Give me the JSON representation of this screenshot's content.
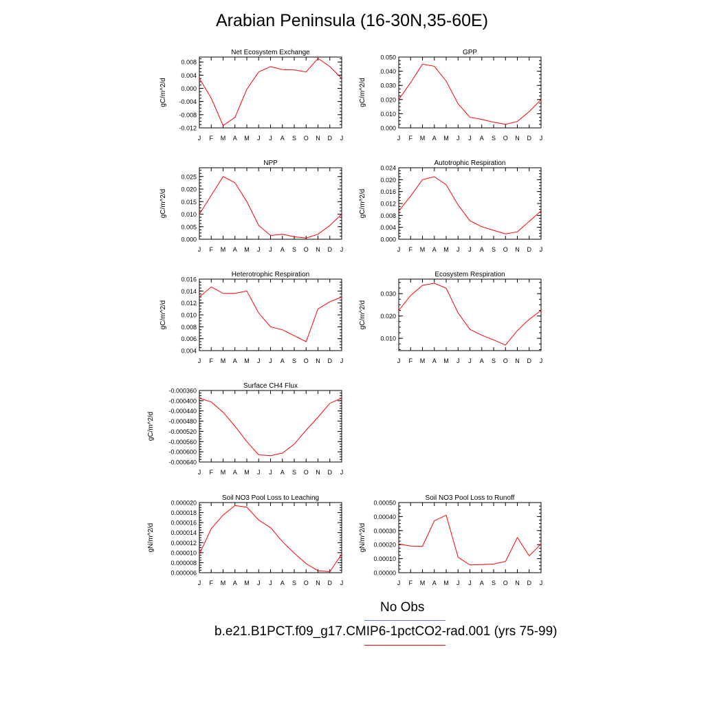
{
  "page_title": "Arabian Peninsula (16-30N,35-60E)",
  "colors": {
    "series": "#ff0000",
    "obs": "#6b6bff",
    "axis": "#000000"
  },
  "legend": [
    {
      "label": "No Obs",
      "color": "#6b6bff"
    },
    {
      "label": "b.e21.B1PCT.f09_g17.CMIP6-1pctCO2-rad.001 (yrs 75-99)",
      "color": "#ff0000"
    }
  ],
  "chart_data": [
    {
      "type": "line",
      "title": "Net Ecosystem Exchange",
      "ylabel": "gC/m^2/d",
      "categories": [
        "J",
        "F",
        "M",
        "A",
        "M",
        "J",
        "J",
        "A",
        "S",
        "O",
        "N",
        "D",
        "J"
      ],
      "ylim": [
        -0.012,
        0.0095
      ],
      "yticks": [
        -0.012,
        -0.008,
        -0.004,
        0.0,
        0.004,
        0.008
      ],
      "yticklabels": [
        "-0.012",
        "-0.008",
        "-0.004",
        "0.000",
        "0.004",
        "0.008"
      ],
      "values": [
        0.003,
        -0.003,
        -0.0113,
        -0.0088,
        -0.0003,
        0.005,
        0.0066,
        0.0057,
        0.0056,
        0.005,
        0.0091,
        0.0066,
        0.003
      ]
    },
    {
      "type": "line",
      "title": "GPP",
      "ylabel": "gC/m^2/d",
      "categories": [
        "J",
        "F",
        "M",
        "A",
        "M",
        "J",
        "J",
        "A",
        "S",
        "O",
        "N",
        "D",
        "J"
      ],
      "ylim": [
        0.0,
        0.05
      ],
      "yticks": [
        0.0,
        0.01,
        0.02,
        0.03,
        0.04,
        0.05
      ],
      "yticklabels": [
        "0.000",
        "0.010",
        "0.020",
        "0.030",
        "0.040",
        "0.050"
      ],
      "values": [
        0.02,
        0.032,
        0.045,
        0.0435,
        0.033,
        0.017,
        0.0075,
        0.006,
        0.004,
        0.0025,
        0.0045,
        0.0115,
        0.02
      ]
    },
    {
      "type": "line",
      "title": "NPP",
      "ylabel": "gC/m^2/d",
      "categories": [
        "J",
        "F",
        "M",
        "A",
        "M",
        "J",
        "J",
        "A",
        "S",
        "O",
        "N",
        "D",
        "J"
      ],
      "ylim": [
        0.0,
        0.0285
      ],
      "yticks": [
        0.0,
        0.005,
        0.01,
        0.015,
        0.02,
        0.025
      ],
      "yticklabels": [
        "0.000",
        "0.005",
        "0.010",
        "0.015",
        "0.020",
        "0.025"
      ],
      "values": [
        0.01,
        0.0175,
        0.025,
        0.0225,
        0.015,
        0.0055,
        0.0015,
        0.002,
        0.001,
        0.0005,
        0.002,
        0.0055,
        0.01
      ]
    },
    {
      "type": "line",
      "title": "Autotrophic Respiration",
      "ylabel": "gC/m^2/d",
      "categories": [
        "J",
        "F",
        "M",
        "A",
        "M",
        "J",
        "J",
        "A",
        "S",
        "O",
        "N",
        "D",
        "J"
      ],
      "ylim": [
        0.0,
        0.024
      ],
      "yticks": [
        0.0,
        0.004,
        0.008,
        0.012,
        0.016,
        0.02,
        0.024
      ],
      "yticklabels": [
        "0.000",
        "0.004",
        "0.008",
        "0.012",
        "0.016",
        "0.020",
        "0.024"
      ],
      "values": [
        0.0095,
        0.0145,
        0.02,
        0.021,
        0.0183,
        0.0115,
        0.0062,
        0.0042,
        0.003,
        0.0018,
        0.0025,
        0.006,
        0.0095
      ]
    },
    {
      "type": "line",
      "title": "Heterotrophic Respiration",
      "ylabel": "gC/m^2/d",
      "categories": [
        "J",
        "F",
        "M",
        "A",
        "M",
        "J",
        "J",
        "A",
        "S",
        "O",
        "N",
        "D",
        "J"
      ],
      "ylim": [
        0.004,
        0.016
      ],
      "yticks": [
        0.004,
        0.006,
        0.008,
        0.01,
        0.012,
        0.014,
        0.016
      ],
      "yticklabels": [
        "0.004",
        "0.006",
        "0.008",
        "0.010",
        "0.012",
        "0.014",
        "0.016"
      ],
      "values": [
        0.013,
        0.0147,
        0.0136,
        0.0136,
        0.014,
        0.0103,
        0.008,
        0.0075,
        0.0065,
        0.0055,
        0.011,
        0.0122,
        0.013
      ]
    },
    {
      "type": "line",
      "title": "Ecosystem Respiration",
      "ylabel": "gC/m^2/d",
      "categories": [
        "J",
        "F",
        "M",
        "A",
        "M",
        "J",
        "J",
        "A",
        "S",
        "O",
        "N",
        "D",
        "J"
      ],
      "ylim": [
        0.0045,
        0.0365
      ],
      "yticks": [
        0.01,
        0.02,
        0.03
      ],
      "yticklabels": [
        "0.010",
        "0.020",
        "0.030"
      ],
      "values": [
        0.0225,
        0.0292,
        0.0337,
        0.0347,
        0.0324,
        0.0214,
        0.014,
        0.0114,
        0.0093,
        0.007,
        0.0135,
        0.0185,
        0.0225
      ]
    },
    {
      "type": "line",
      "title": "Surface CH4 Flux",
      "ylabel": "gC/m^2/d",
      "categories": [
        "J",
        "F",
        "M",
        "A",
        "M",
        "J",
        "J",
        "A",
        "S",
        "O",
        "N",
        "D",
        "J"
      ],
      "ylim": [
        -0.00064,
        -0.00036
      ],
      "yticks": [
        -0.00064,
        -0.0006,
        -0.00056,
        -0.00052,
        -0.00048,
        -0.00044,
        -0.0004,
        -0.00036
      ],
      "yticklabels": [
        "-0.000640",
        "-0.000600",
        "-0.000560",
        "-0.000520",
        "-0.000480",
        "-0.000440",
        "-0.000400",
        "-0.000360"
      ],
      "values": [
        -0.00039,
        -0.000405,
        -0.000445,
        -0.0005,
        -0.00056,
        -0.000612,
        -0.000615,
        -0.000605,
        -0.00057,
        -0.000515,
        -0.000465,
        -0.00041,
        -0.00039
      ]
    },
    {
      "type": "line",
      "title": "Soil NO3 Pool Loss to Leaching",
      "ylabel": "gN/m^2/d",
      "categories": [
        "J",
        "F",
        "M",
        "A",
        "M",
        "J",
        "J",
        "A",
        "S",
        "O",
        "N",
        "D",
        "J"
      ],
      "ylim": [
        6e-06,
        2e-05
      ],
      "yticks": [
        6e-06,
        8e-06,
        1e-05,
        1.2e-05,
        1.4e-05,
        1.6e-05,
        1.8e-05,
        2e-05
      ],
      "yticklabels": [
        "0.000006",
        "0.000008",
        "0.000010",
        "0.000012",
        "0.000014",
        "0.000016",
        "0.000018",
        "0.000020"
      ],
      "values": [
        9.7e-06,
        1.48e-05,
        1.75e-05,
        1.94e-05,
        1.91e-05,
        1.65e-05,
        1.5e-05,
        1.22e-05,
        9.9e-06,
        7.8e-06,
        6.4e-06,
        6.2e-06,
        9.7e-06
      ]
    },
    {
      "type": "line",
      "title": "Soil NO3 Pool Loss to Runoff",
      "ylabel": "gN/m^2/d",
      "categories": [
        "J",
        "F",
        "M",
        "A",
        "M",
        "J",
        "J",
        "A",
        "S",
        "O",
        "N",
        "D",
        "J"
      ],
      "ylim": [
        0.0,
        0.0005
      ],
      "yticks": [
        0.0,
        0.0001,
        0.0002,
        0.0003,
        0.0004,
        0.0005
      ],
      "yticklabels": [
        "0.00000",
        "0.00010",
        "0.00020",
        "0.00030",
        "0.00040",
        "0.00050"
      ],
      "values": [
        0.000205,
        0.00019,
        0.000188,
        0.00037,
        0.00041,
        0.00011,
        5.5e-05,
        5.8e-05,
        6.2e-05,
        8e-05,
        0.00025,
        0.00012,
        0.000205
      ]
    }
  ]
}
